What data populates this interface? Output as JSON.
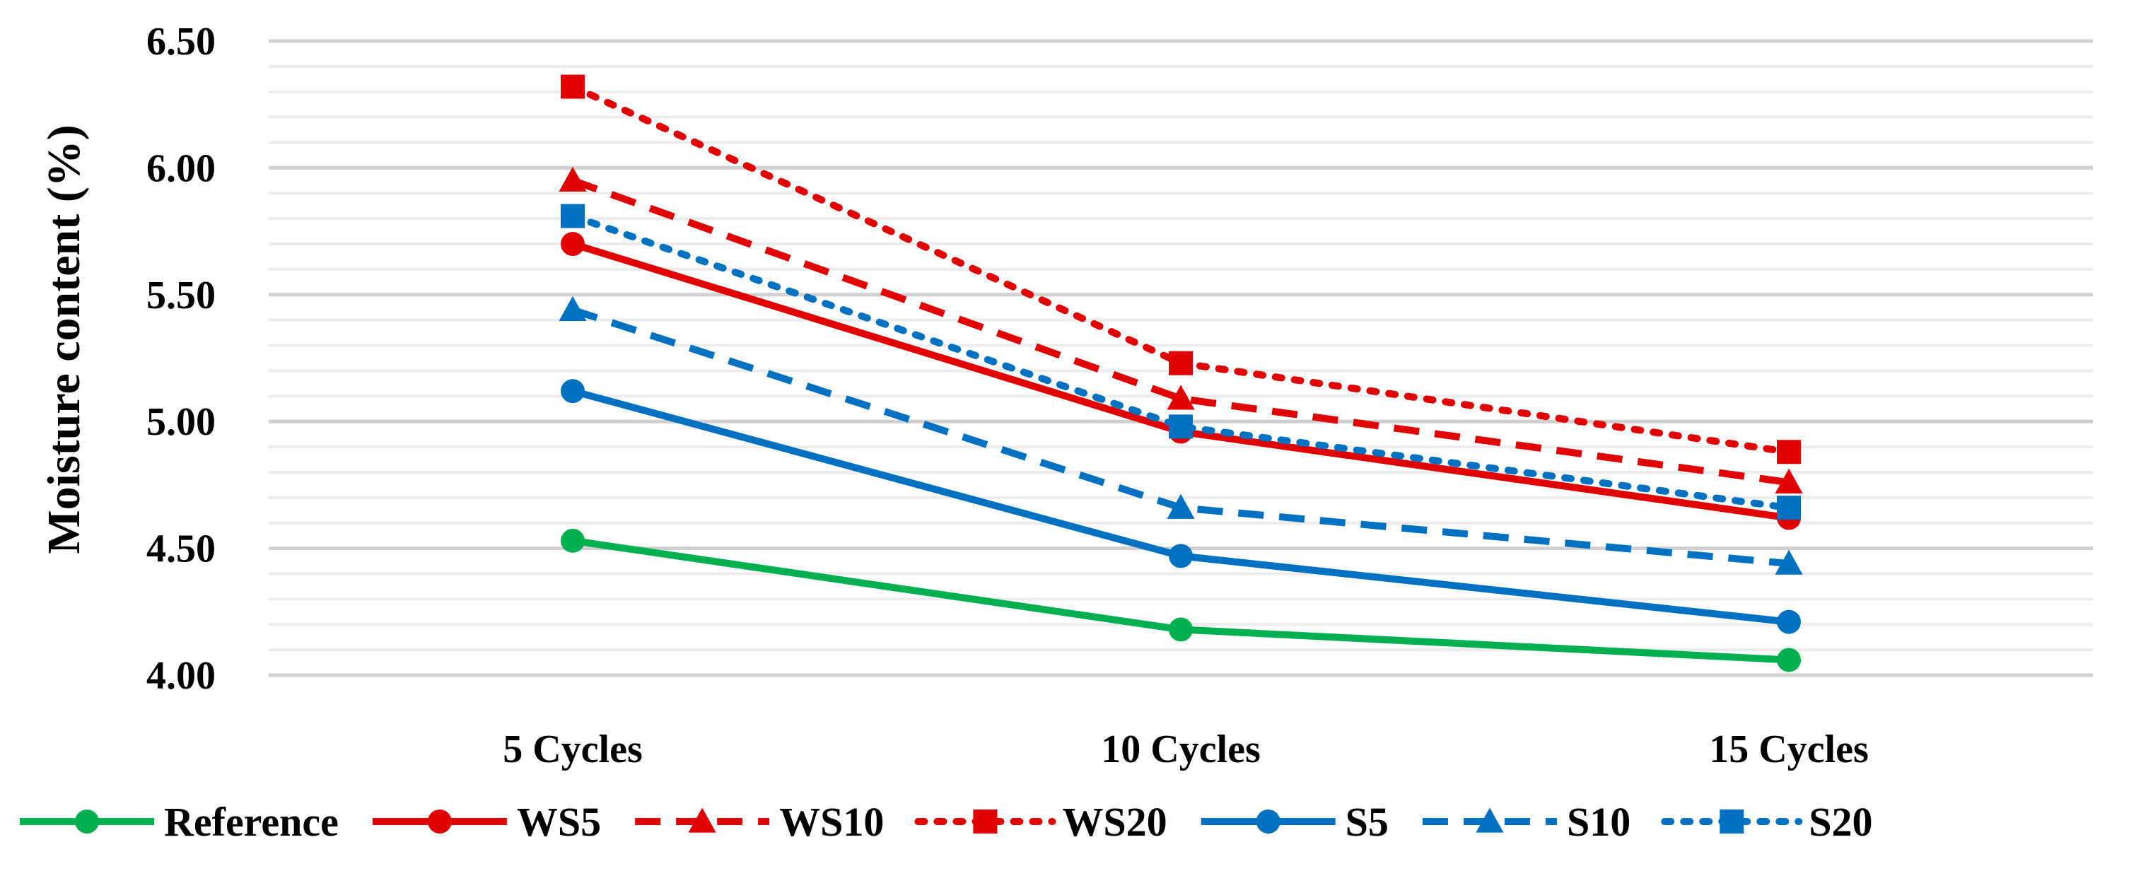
{
  "chart_data": {
    "type": "line",
    "title": "",
    "xlabel": "",
    "ylabel": "Moisture content (%)",
    "categories": [
      "5 Cycles",
      "10 Cycles",
      "15 Cycles"
    ],
    "ylim": [
      4.0,
      6.5
    ],
    "y_major_ticks": [
      "4.00",
      "4.50",
      "5.00",
      "5.50",
      "6.00",
      "6.50"
    ],
    "y_major_values": [
      4.0,
      4.5,
      5.0,
      5.5,
      6.0,
      6.5
    ],
    "grid": true,
    "legend_position": "bottom",
    "series": [
      {
        "name": "Reference",
        "values": [
          4.53,
          4.18,
          4.06
        ],
        "color": "#00b050",
        "dash": "solid",
        "marker": "circle"
      },
      {
        "name": "WS5",
        "values": [
          5.7,
          4.96,
          4.62
        ],
        "color": "#e00000",
        "dash": "solid",
        "marker": "circle"
      },
      {
        "name": "WS10",
        "values": [
          5.95,
          5.09,
          4.76
        ],
        "color": "#e00000",
        "dash": "dash",
        "marker": "triangle"
      },
      {
        "name": "WS20",
        "values": [
          6.32,
          5.23,
          4.88
        ],
        "color": "#e00000",
        "dash": "dot",
        "marker": "square"
      },
      {
        "name": "S5",
        "values": [
          5.12,
          4.47,
          4.21
        ],
        "color": "#0070c0",
        "dash": "solid",
        "marker": "circle"
      },
      {
        "name": "S10",
        "values": [
          5.44,
          4.66,
          4.44
        ],
        "color": "#0070c0",
        "dash": "dash",
        "marker": "triangle"
      },
      {
        "name": "S20",
        "values": [
          5.81,
          4.98,
          4.66
        ],
        "color": "#0070c0",
        "dash": "dot",
        "marker": "square"
      }
    ]
  }
}
